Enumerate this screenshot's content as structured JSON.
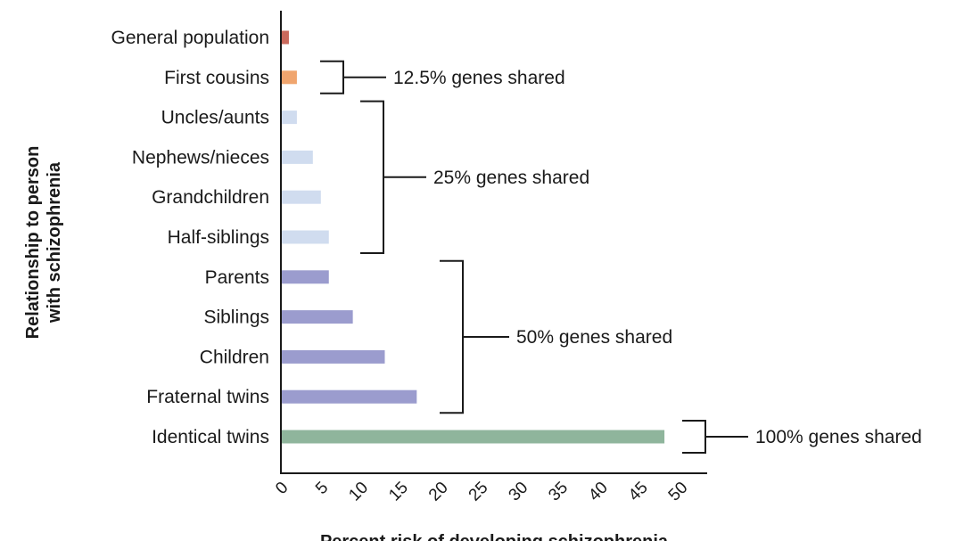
{
  "chart_data": {
    "type": "bar",
    "orientation": "horizontal",
    "title": "",
    "ylabel": "Relationship to person with schizophrenia",
    "ylabel_lines": [
      "Relationship to person",
      "with schizophrenia"
    ],
    "xlabel": "Percent risk of developing schizophrenia",
    "xlim": [
      0,
      50
    ],
    "xticks": [
      "0",
      "5",
      "10",
      "15",
      "20",
      "25",
      "30",
      "35",
      "40",
      "45",
      "50"
    ],
    "grid": false,
    "categories": [
      "General population",
      "First cousins",
      "Uncles/aunts",
      "Nephews/nieces",
      "Grandchildren",
      "Half-siblings",
      "Parents",
      "Siblings",
      "Children",
      "Fraternal twins",
      "Identical twins"
    ],
    "values": [
      1,
      2,
      2,
      4,
      5,
      6,
      6,
      9,
      13,
      17,
      48
    ],
    "colors": [
      "#c9695c",
      "#f0a56e",
      "#d0dcef",
      "#d0dcef",
      "#d0dcef",
      "#d0dcef",
      "#9b9cce",
      "#9b9cce",
      "#9b9cce",
      "#9b9cce",
      "#8fb59c"
    ],
    "annotations": [
      {
        "text": "12.5% genes shared",
        "from": 1,
        "to": 1
      },
      {
        "text": "25% genes shared",
        "from": 2,
        "to": 5
      },
      {
        "text": "50% genes shared",
        "from": 6,
        "to": 9
      },
      {
        "text": "100% genes shared",
        "from": 10,
        "to": 10
      }
    ]
  }
}
